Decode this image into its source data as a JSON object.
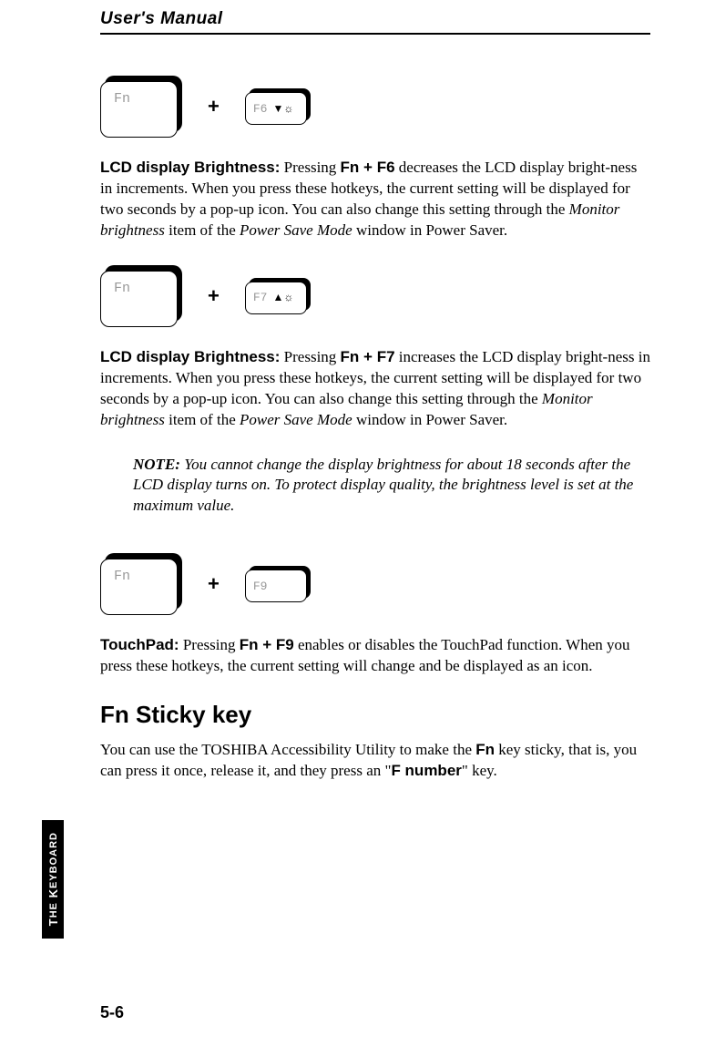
{
  "header": {
    "title": "User's Manual"
  },
  "sections": [
    {
      "fnLabel": "Fn",
      "fLabel": "F6",
      "fIcon": "▼☼",
      "heading": "LCD display Brightness:",
      "bodyPre": " Pressing ",
      "bodyKeys": "Fn + F6",
      "bodyPost1": " decreases the LCD display bright-ness in increments. When you press these hotkeys, the current setting will be displayed for two seconds by a pop-up icon. You can also change this setting through the ",
      "italic1": "Monitor brightness",
      "bodyPost2": " item of the  ",
      "italic2": "Power Save Mode",
      "bodyPost3": " window in Power Saver."
    },
    {
      "fnLabel": "Fn",
      "fLabel": "F7",
      "fIcon": "▲☼",
      "heading": "LCD display Brightness:",
      "bodyPre": " Pressing ",
      "bodyKeys": "Fn + F7",
      "bodyPost1": " increases the LCD display bright-ness in increments. When you press these hotkeys, the current setting will be displayed for two seconds by a pop-up icon. You can also change this setting through the ",
      "italic1": "Monitor brightness",
      "bodyPost2": " item of the  ",
      "italic2": "Power Save Mode",
      "bodyPost3": " window in Power Saver."
    }
  ],
  "note": {
    "label": "NOTE:",
    "text": " You cannot change the display brightness for about 18 seconds after the LCD display turns on. To protect display quality, the brightness level is set at the maximum value."
  },
  "touchpad": {
    "fnLabel": "Fn",
    "fLabel": "F9",
    "fIcon": "",
    "heading": "TouchPad:",
    "bodyPre": " Pressing ",
    "bodyKeys": "Fn + F9",
    "bodyPost": " enables or disables the TouchPad function. When you press these hotkeys, the current setting will change and be displayed as an icon."
  },
  "stickyHeading": "Fn Sticky key",
  "stickyBody": {
    "pre": "You can use the TOSHIBA Accessibility Utility to make the ",
    "key1": "Fn",
    "mid": " key sticky, that is, you can press it once, release it, and they press an  \"",
    "key2": "F number",
    "post": "\" key."
  },
  "sideTab": "THE KEYBOARD",
  "pageNumber": "5-6"
}
